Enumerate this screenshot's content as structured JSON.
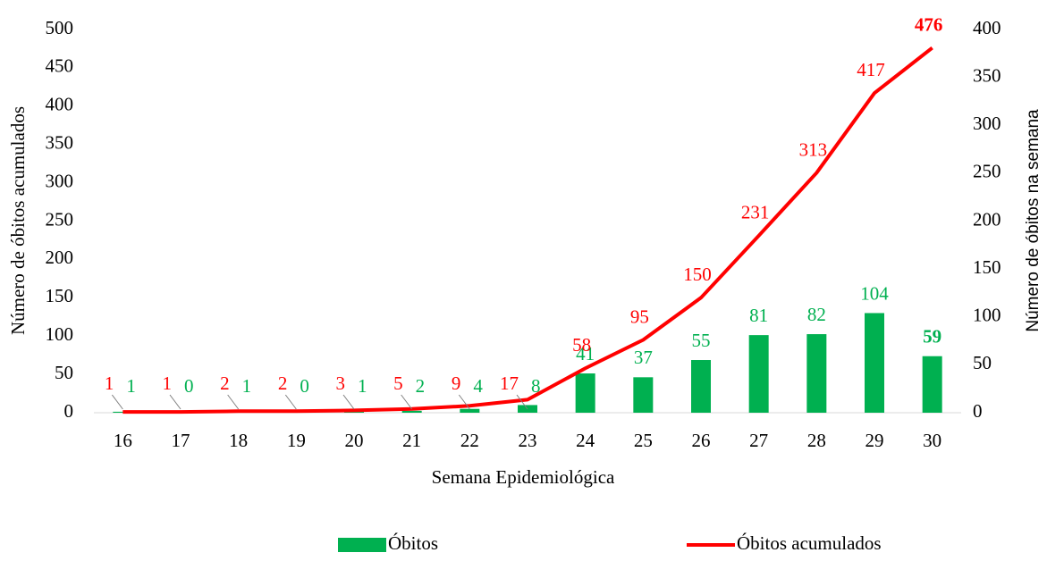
{
  "chart_data": {
    "type": "bar+line",
    "xlabel": "Semana Epidemiológica",
    "ylabel": "Número de óbitos acumulados",
    "y2label": "Número de óbitos na semana",
    "categories": [
      "16",
      "17",
      "18",
      "19",
      "20",
      "21",
      "22",
      "23",
      "24",
      "25",
      "26",
      "27",
      "28",
      "29",
      "30"
    ],
    "series": [
      {
        "name": "Óbitos",
        "type": "bar",
        "axis": "y2",
        "color": "#00b050",
        "values": [
          1,
          0,
          1,
          0,
          1,
          2,
          4,
          8,
          41,
          37,
          55,
          81,
          82,
          104,
          59
        ]
      },
      {
        "name": "Óbitos acumulados",
        "type": "line",
        "axis": "y",
        "color": "#ff0000",
        "values": [
          1,
          1,
          2,
          2,
          3,
          5,
          9,
          17,
          58,
          95,
          150,
          231,
          313,
          417,
          476
        ]
      }
    ],
    "ylim": [
      0,
      500
    ],
    "yticks": [
      0,
      50,
      100,
      150,
      200,
      250,
      300,
      350,
      400,
      450,
      500
    ],
    "y2lim": [
      0,
      400
    ],
    "y2ticks": [
      0,
      50,
      100,
      150,
      200,
      250,
      300,
      350,
      400
    ],
    "legend": "bottom"
  }
}
